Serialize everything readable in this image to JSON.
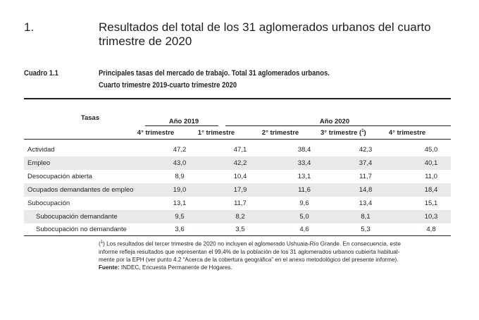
{
  "section": {
    "number": "1.",
    "title": "Resultados del total de los 31 aglomerados urbanos del cuarto trimestre de 2020"
  },
  "table": {
    "label": "Cuadro 1.1",
    "title_line1": "Principales tasas del mercado de trabajo. Total 31 aglomerados urbanos.",
    "title_line2": "Cuarto trimestre 2019-cuarto trimestre 2020",
    "header": {
      "tasas": "Tasas",
      "year_2019": "Año 2019",
      "year_2020": "Año 2020",
      "quarters": [
        "4° trimestre",
        "1° trimestre",
        "2° trimestre",
        "3° trimestre (",
        "4° trimestre"
      ],
      "q3_note_mark": "1",
      "q3_close": ")"
    },
    "rows": [
      {
        "label": "Actividad",
        "values": [
          "47,2",
          "47,1",
          "38,4",
          "42,3",
          "45,0"
        ]
      },
      {
        "label": "Empleo",
        "values": [
          "43,0",
          "42,2",
          "33,4",
          "37,4",
          "40,1"
        ]
      },
      {
        "label": "Desocupación abierta",
        "values": [
          "8,9",
          "10,4",
          "13,1",
          "11,7",
          "11,0"
        ]
      },
      {
        "label": "Ocupados demandantes de empleo",
        "values": [
          "19,0",
          "17,9",
          "11,6",
          "14,8",
          "18,4"
        ]
      },
      {
        "label": "Subocupación",
        "values": [
          "13,1",
          "11,7",
          "9,6",
          "13,4",
          "15,1"
        ]
      },
      {
        "label": "Subocupación demandante",
        "values": [
          "9,5",
          "8,2",
          "5,0",
          "8,1",
          "10,3"
        ]
      },
      {
        "label": "Subocupación no demandante",
        "values": [
          "3,6",
          "3,5",
          "4,6",
          "5,3",
          "4,8"
        ]
      }
    ],
    "footnote": {
      "open": "(",
      "mark": "1",
      "close": ")",
      "line1": " Los resultados del tercer trimestre de 2020 no incluyen el aglomerado Ushuaia-Río Grande. En consecuencia, este",
      "line2": "informe refleja resultados que representan el 99,4% de la población de los 31 aglomerados urbanos cubierta habitual-",
      "line3": "mente por la EPH (ver punto 4.2 “Acerca de la cobertura geográfica” en el anexo metodológico del presente informe).",
      "source_label": "Fuente:",
      "source_text": " INDEC, Encuesta Permanente de Hogares."
    }
  }
}
